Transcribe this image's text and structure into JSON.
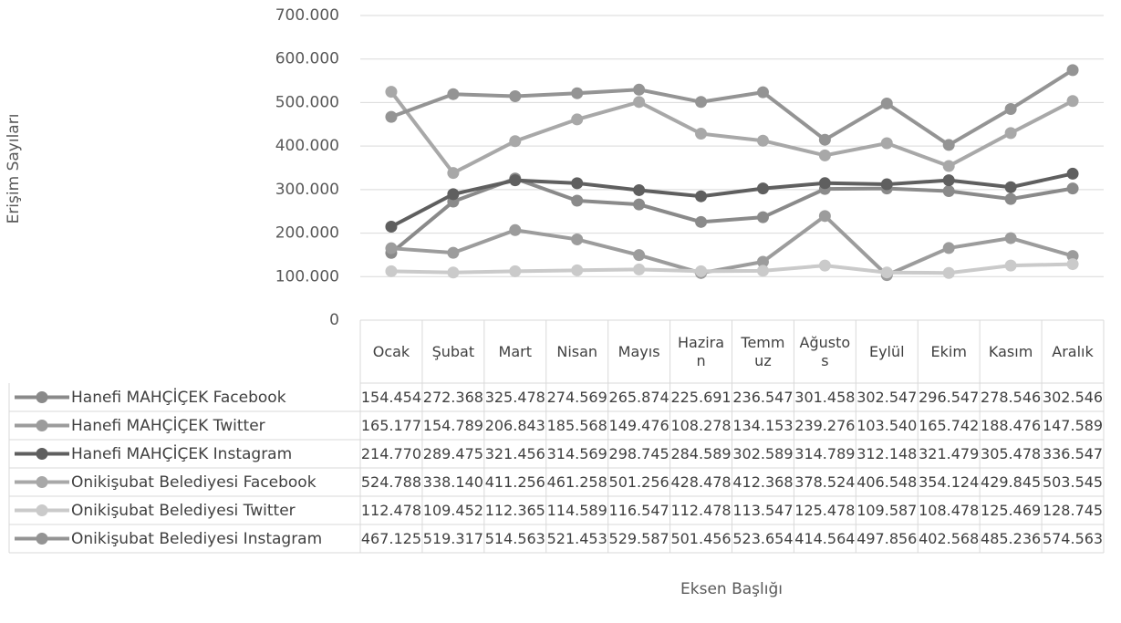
{
  "chart_data": {
    "type": "line",
    "y_label": "Erişim Sayıları",
    "x_label": "Eksen Başlığı",
    "categories": [
      "Ocak",
      "Şubat",
      "Mart",
      "Nisan",
      "Mayıs",
      "Haziran",
      "Temmuz",
      "Ağustos",
      "Eylül",
      "Ekim",
      "Kasım",
      "Aralık"
    ],
    "ylim": [
      0,
      700000
    ],
    "yticks": [
      0,
      {
        "value": 100000,
        "label": "100.000"
      },
      {
        "value": 200000,
        "label": "200.000"
      },
      {
        "value": 300000,
        "label": "300.000"
      },
      {
        "value": 400000,
        "label": "400.000"
      },
      {
        "value": 500000,
        "label": "500.000"
      },
      {
        "value": 600000,
        "label": "600.000"
      },
      {
        "value": 700000,
        "label": "700.000"
      }
    ],
    "grid": true,
    "series": [
      {
        "name": "Hanefi MAHÇİÇEK Facebook",
        "color": "#8a8a8a",
        "values": [
          154454,
          272368,
          325478,
          274569,
          265874,
          225691,
          236547,
          301458,
          302547,
          296547,
          278546,
          302546
        ],
        "value_labels": [
          "154.454",
          "272.368",
          "325.478",
          "274.569",
          "265.874",
          "225.691",
          "236.547",
          "301.458",
          "302.547",
          "296.547",
          "278.546",
          "302.546"
        ]
      },
      {
        "name": "Hanefi MAHÇİÇEK Twitter",
        "color": "#9c9c9c",
        "values": [
          165177,
          154789,
          206843,
          185568,
          149476,
          108278,
          134153,
          239276,
          103540,
          165742,
          188476,
          147589
        ],
        "value_labels": [
          "165.177",
          "154.789",
          "206.843",
          "185.568",
          "149.476",
          "108.278",
          "134.153",
          "239.276",
          "103.540",
          "165.742",
          "188.476",
          "147.589"
        ]
      },
      {
        "name": "Hanefi MAHÇİÇEK Instagram",
        "color": "#5f5f5f",
        "values": [
          214770,
          289475,
          321456,
          314569,
          298745,
          284589,
          302589,
          314789,
          312148,
          321479,
          305478,
          336547
        ],
        "value_labels": [
          "214.770",
          "289.475",
          "321.456",
          "314.569",
          "298.745",
          "284.589",
          "302.589",
          "314.789",
          "312.148",
          "321.479",
          "305.478",
          "336.547"
        ]
      },
      {
        "name": "Onikişubat Belediyesi Facebook",
        "color": "#a8a8a8",
        "values": [
          524788,
          338140,
          411256,
          461258,
          501256,
          428478,
          412368,
          378524,
          406548,
          354124,
          429845,
          503545
        ],
        "value_labels": [
          "524.788",
          "338.140",
          "411.256",
          "461.258",
          "501.256",
          "428.478",
          "412.368",
          "378.524",
          "406.548",
          "354.124",
          "429.845",
          "503.545"
        ]
      },
      {
        "name": "Onikişubat Belediyesi Twitter",
        "color": "#cacaca",
        "values": [
          112478,
          109452,
          112365,
          114589,
          116547,
          112478,
          113547,
          125478,
          109587,
          108478,
          125469,
          128745
        ],
        "value_labels": [
          "112.478",
          "109.452",
          "112.365",
          "114.589",
          "116.547",
          "112.478",
          "113.547",
          "125.478",
          "109.587",
          "108.478",
          "125.469",
          "128.745"
        ]
      },
      {
        "name": "Onikişubat Belediyesi Instagram",
        "color": "#949494",
        "values": [
          467125,
          519317,
          514563,
          521453,
          529587,
          501456,
          523654,
          414564,
          497856,
          402568,
          485236,
          574563
        ],
        "value_labels": [
          "467.125",
          "519.317",
          "514.563",
          "521.453",
          "529.587",
          "501.456",
          "523.654",
          "414.564",
          "497.856",
          "402.568",
          "485.236",
          "574.563"
        ]
      }
    ]
  }
}
